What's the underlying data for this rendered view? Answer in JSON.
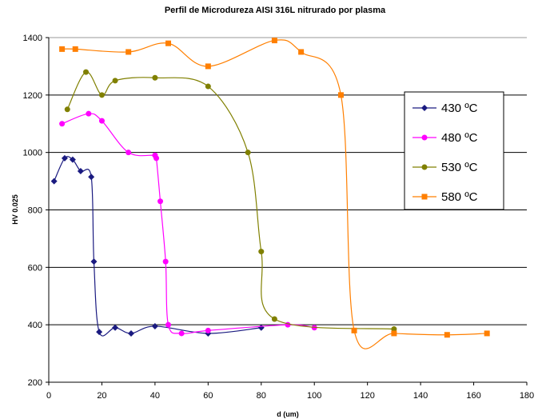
{
  "chart_data": {
    "type": "line",
    "title": "Perfil de Microdureza AISI 316L nitrurado por plasma",
    "xlabel": "d (um)",
    "ylabel": "HV 0.025",
    "xlim": [
      0,
      180
    ],
    "ylim": [
      200,
      1400
    ],
    "x_ticks": [
      "0",
      "20",
      "40",
      "60",
      "80",
      "100",
      "120",
      "140",
      "160",
      "180"
    ],
    "y_ticks": [
      "200",
      "400",
      "600",
      "800",
      "1000",
      "1200",
      "1400"
    ],
    "grid": "horizontal",
    "legend_position": "right",
    "series": [
      {
        "name": "430 ºC",
        "color": "#1a1a80",
        "marker": "diamond",
        "x": [
          2,
          6,
          9,
          12,
          16,
          17,
          19,
          25,
          31,
          40,
          60,
          80
        ],
        "y": [
          900,
          980,
          975,
          935,
          915,
          620,
          375,
          390,
          370,
          395,
          370,
          390
        ]
      },
      {
        "name": "480 ºC",
        "color": "#ff00ff",
        "marker": "circle",
        "x": [
          5,
          15,
          20,
          30,
          40,
          40.5,
          42,
          44,
          45,
          50,
          60,
          90,
          100
        ],
        "y": [
          1100,
          1135,
          1110,
          1000,
          990,
          980,
          830,
          620,
          400,
          370,
          380,
          400,
          390
        ]
      },
      {
        "name": "530 ºC",
        "color": "#808000",
        "marker": "circle",
        "x": [
          7,
          14,
          20,
          25,
          40,
          60,
          75,
          80,
          85,
          130
        ],
        "y": [
          1150,
          1280,
          1200,
          1250,
          1260,
          1230,
          1000,
          655,
          420,
          385
        ]
      },
      {
        "name": "580 ºC",
        "color": "#ff7f00",
        "marker": "square",
        "x": [
          5,
          10,
          30,
          45,
          60,
          85,
          95,
          110,
          115,
          130,
          150,
          165
        ],
        "y": [
          1360,
          1360,
          1350,
          1380,
          1300,
          1390,
          1350,
          1200,
          380,
          370,
          365,
          370
        ]
      }
    ]
  }
}
